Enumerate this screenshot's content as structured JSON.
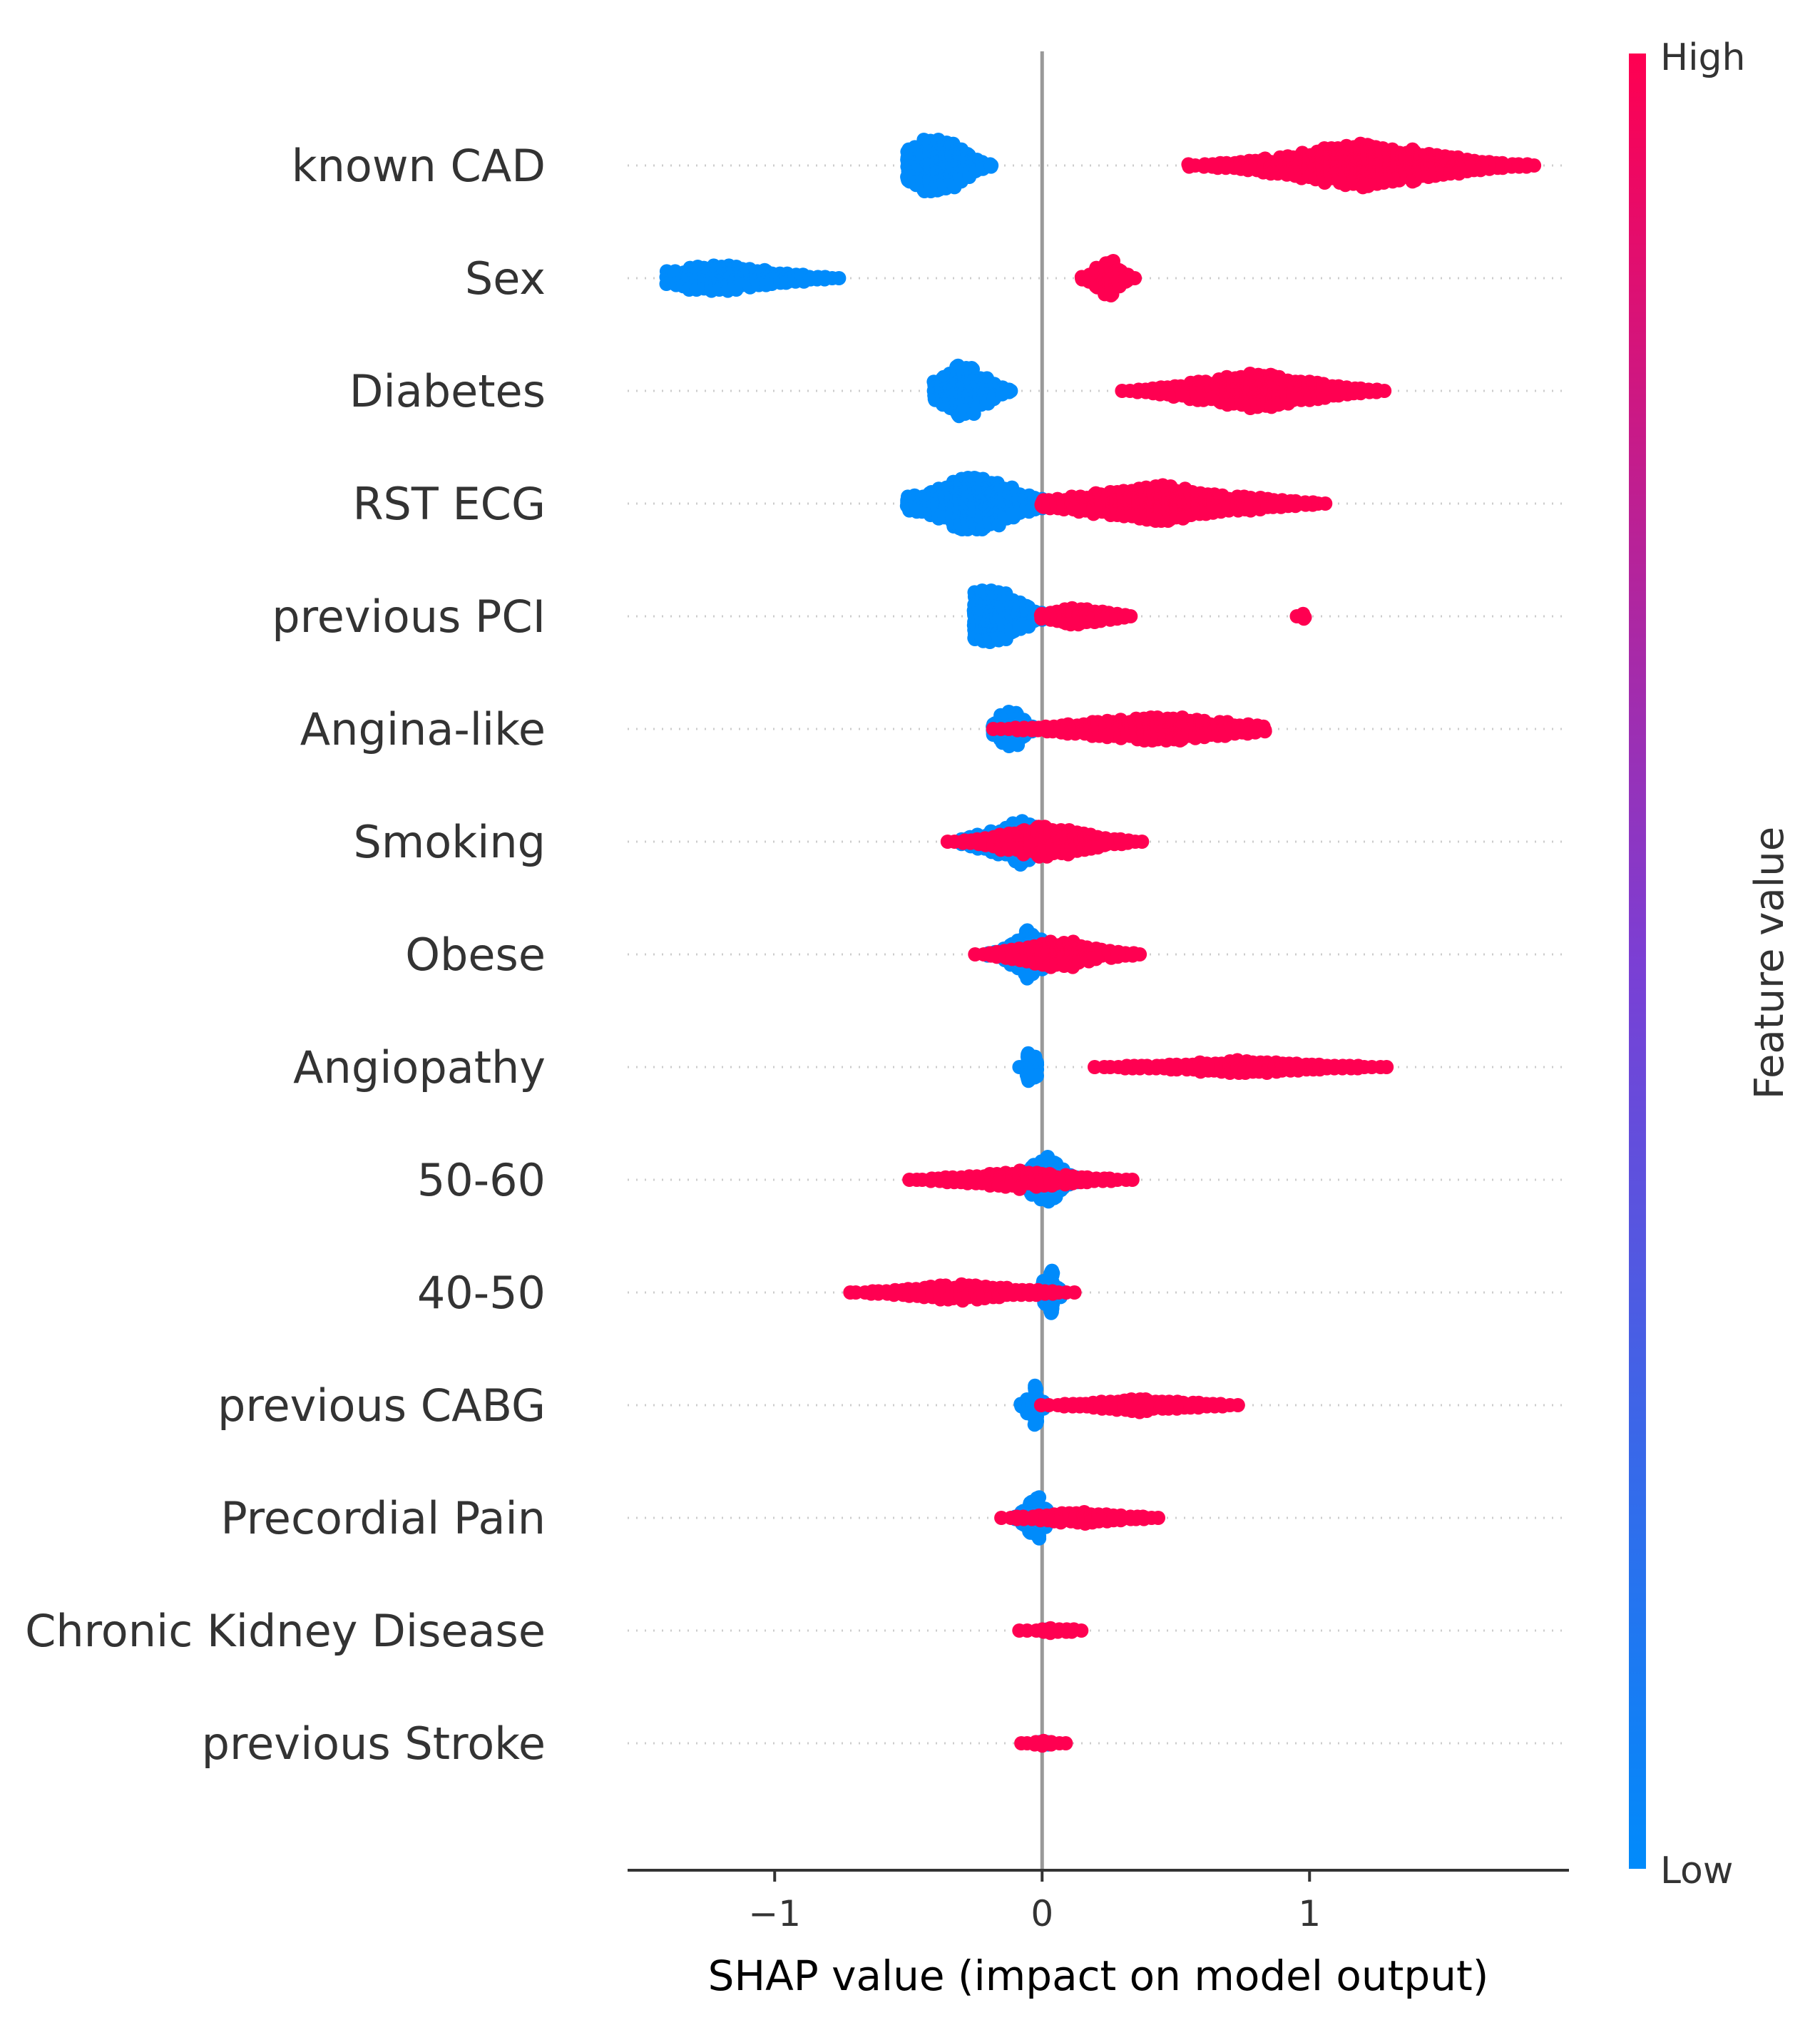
{
  "chart_data": {
    "type": "scatter",
    "subtype": "beeswarm",
    "title": "",
    "xlabel": "SHAP value (impact on model output)",
    "xlim": [
      -1.55,
      1.97
    ],
    "xticks": [
      -1,
      0,
      1
    ],
    "xtick_labels": [
      "−1",
      "0",
      "1"
    ],
    "grid": false,
    "colorbar": {
      "title": "Feature value",
      "high_label": "High",
      "low_label": "Low",
      "high_color": "#ff0051",
      "low_color": "#008bfb"
    },
    "features": [
      {
        "name": "known CAD",
        "low": [
          [
            -0.5,
            -0.17,
            0.3,
            34
          ]
        ],
        "high": [
          [
            0.55,
            1.85,
            0.5,
            22
          ]
        ]
      },
      {
        "name": "Sex",
        "low": [
          [
            -1.4,
            -0.75,
            0.28,
            14
          ]
        ],
        "high": [
          [
            0.15,
            0.35,
            0.5,
            20
          ]
        ]
      },
      {
        "name": "Diabetes",
        "low": [
          [
            -0.4,
            -0.1,
            0.35,
            28
          ]
        ],
        "high": [
          [
            0.3,
            1.3,
            0.5,
            18
          ]
        ]
      },
      {
        "name": "RST ECG",
        "low": [
          [
            -0.5,
            0.1,
            0.4,
            30
          ]
        ],
        "high": [
          [
            0.0,
            1.08,
            0.4,
            18
          ]
        ]
      },
      {
        "name": "previous PCI",
        "low": [
          [
            -0.25,
            0.05,
            0.12,
            36
          ]
        ],
        "high": [
          [
            0.0,
            0.35,
            0.4,
            10
          ],
          [
            0.95,
            1.0,
            0.5,
            3
          ]
        ]
      },
      {
        "name": "Angina-like",
        "low": [
          [
            -0.18,
            -0.02,
            0.4,
            24
          ]
        ],
        "high": [
          [
            -0.18,
            0.85,
            0.6,
            12
          ]
        ]
      },
      {
        "name": "Smoking",
        "low": [
          [
            -0.3,
            0.2,
            0.45,
            24
          ]
        ],
        "high": [
          [
            -0.35,
            0.38,
            0.5,
            16
          ]
        ]
      },
      {
        "name": "Obese",
        "low": [
          [
            -0.2,
            0.1,
            0.5,
            24
          ]
        ],
        "high": [
          [
            -0.25,
            0.38,
            0.5,
            14
          ]
        ]
      },
      {
        "name": "Angiopathy",
        "low": [
          [
            -0.08,
            0.0,
            0.5,
            22
          ]
        ],
        "high": [
          [
            0.2,
            1.3,
            0.5,
            6
          ]
        ]
      },
      {
        "name": "50-60",
        "low": [
          [
            -0.12,
            0.15,
            0.5,
            28
          ]
        ],
        "high": [
          [
            -0.5,
            0.35,
            0.5,
            8
          ]
        ]
      },
      {
        "name": "40-50",
        "low": [
          [
            -0.02,
            0.08,
            0.5,
            24
          ]
        ],
        "high": [
          [
            -0.72,
            0.12,
            0.5,
            8
          ]
        ]
      },
      {
        "name": "previous CABG",
        "low": [
          [
            -0.08,
            0.02,
            0.5,
            22
          ]
        ],
        "high": [
          [
            0.0,
            0.75,
            0.5,
            6
          ]
        ]
      },
      {
        "name": "Precordial Pain",
        "low": [
          [
            -0.1,
            0.05,
            0.5,
            22
          ]
        ],
        "high": [
          [
            -0.15,
            0.45,
            0.5,
            6
          ]
        ]
      },
      {
        "name": "Chronic Kidney Disease",
        "low": [
          [
            -0.01,
            0.02,
            0.5,
            20
          ]
        ],
        "high": [
          [
            -0.08,
            0.17,
            0.5,
            2
          ]
        ]
      },
      {
        "name": "previous Stroke",
        "low": [
          [
            -0.01,
            0.02,
            0.5,
            20
          ]
        ],
        "high": [
          [
            -0.08,
            0.1,
            0.5,
            2
          ]
        ]
      }
    ]
  }
}
